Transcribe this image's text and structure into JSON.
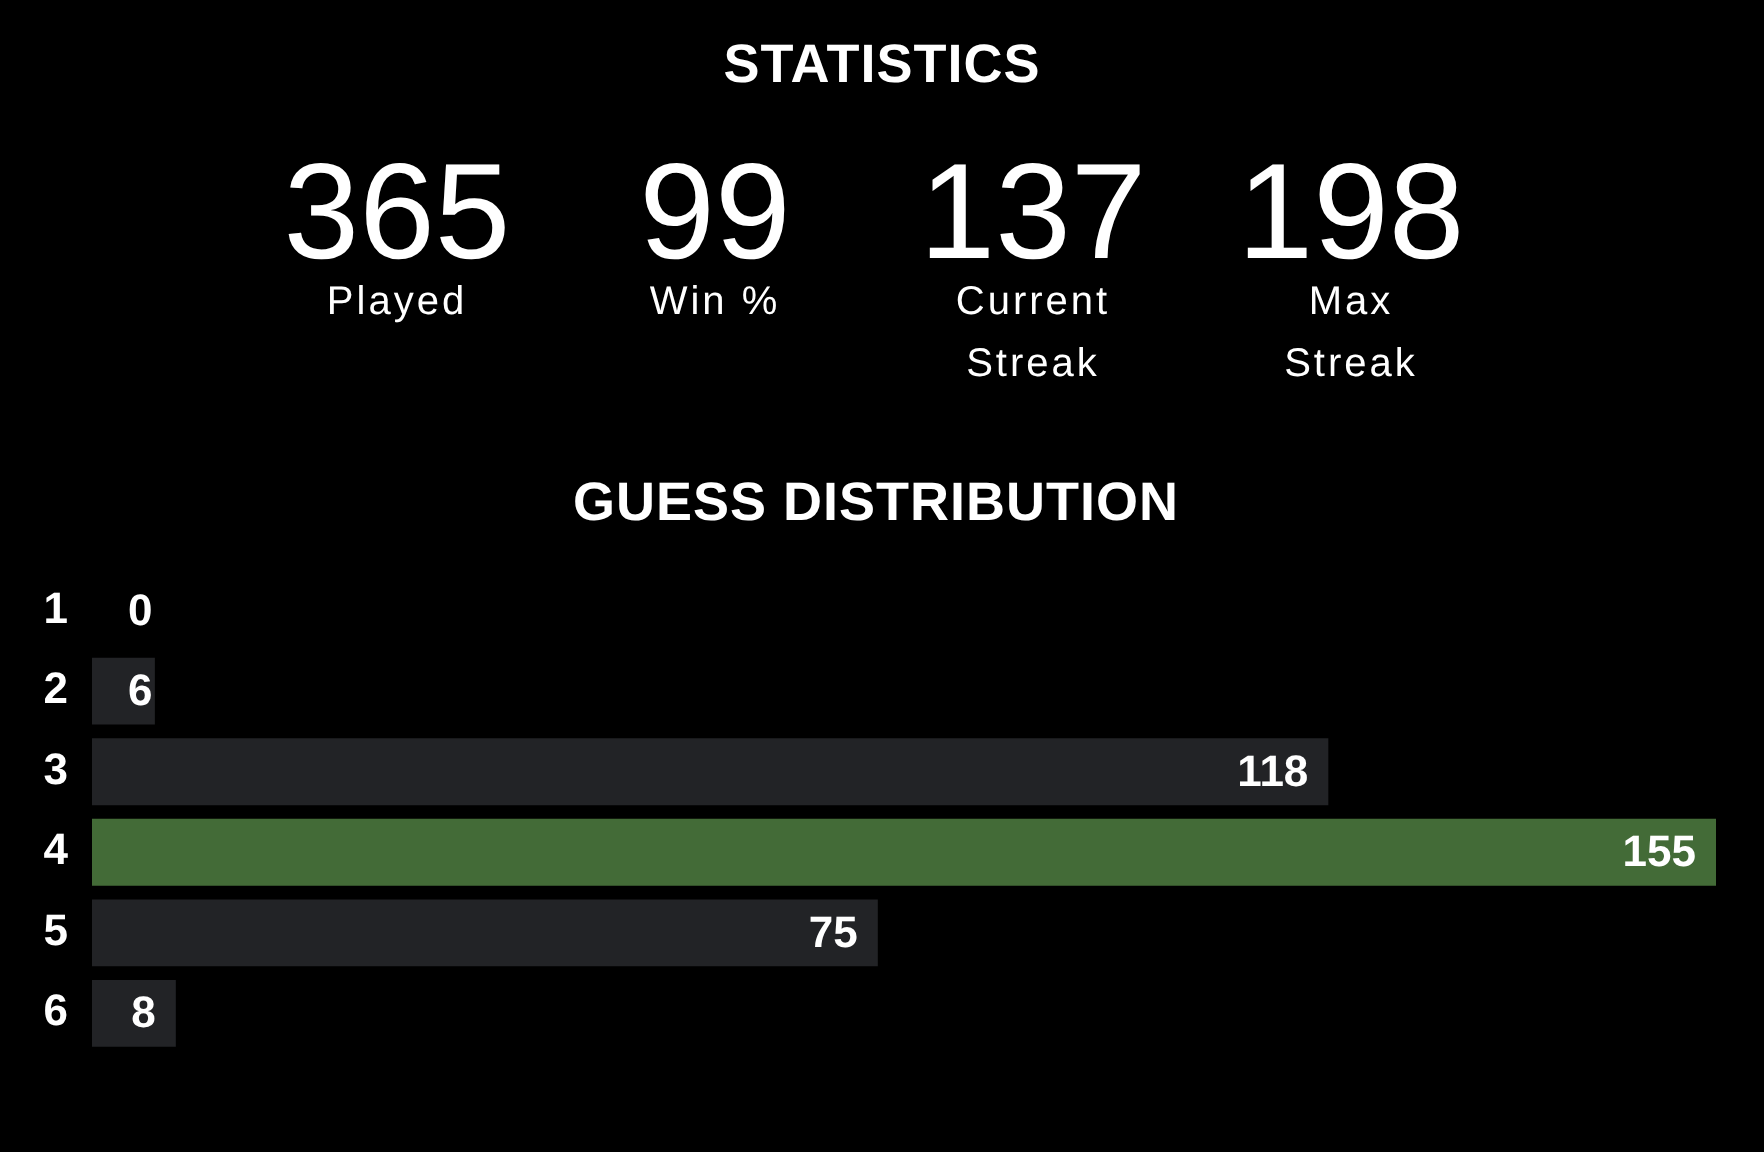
{
  "chart_data": [
    {
      "type": "other",
      "title": "STATISTICS",
      "categories": [
        "Played",
        "Win %",
        "Current Streak",
        "Max Streak"
      ],
      "values": [
        365,
        99,
        137,
        198
      ],
      "data_labels": true
    },
    {
      "type": "bar",
      "title": "GUESS DISTRIBUTION",
      "orientation": "horizontal",
      "categories": [
        "1",
        "2",
        "3",
        "4",
        "5",
        "6"
      ],
      "values": [
        0,
        6,
        118,
        155,
        75,
        8
      ],
      "colors": [
        "#222326",
        "#222326",
        "#222326",
        "#436b37",
        "#222326",
        "#222326"
      ],
      "data_labels": true,
      "grid": false,
      "legend": false,
      "tick_labels": "y"
    }
  ]
}
